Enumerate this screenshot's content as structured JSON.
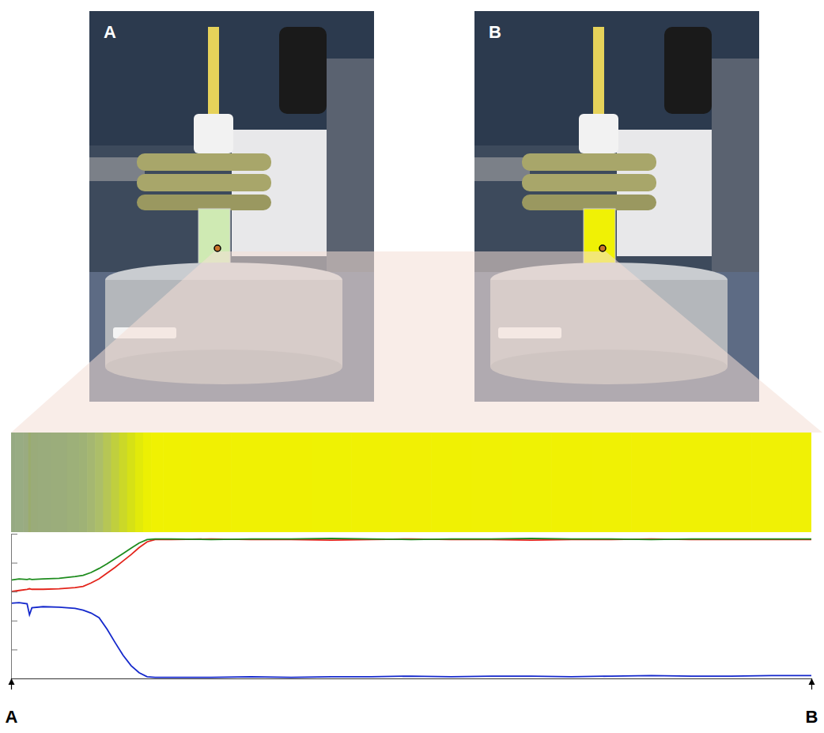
{
  "photos": {
    "labels": [
      "A",
      "B"
    ]
  },
  "chart_data": {
    "type": "line",
    "x": [
      0,
      1,
      2,
      2.3,
      2.6,
      4,
      6,
      8,
      9,
      10,
      11,
      12,
      13,
      14,
      15,
      16,
      17,
      18,
      20,
      25,
      30,
      35,
      40,
      45,
      50,
      55,
      60,
      65,
      70,
      75,
      80,
      85,
      90,
      95,
      100
    ],
    "series": [
      {
        "color": "#e3241b",
        "values": [
          150,
          152,
          154,
          155,
          154,
          154,
          155,
          157,
          159,
          165,
          172,
          182,
          192,
          203,
          214,
          226,
          236,
          240,
          240,
          241,
          240,
          240,
          239,
          240,
          241,
          240,
          240,
          239,
          240,
          240,
          241,
          240,
          240,
          240,
          240
        ]
      },
      {
        "color": "#1e8c1e",
        "values": [
          170,
          172,
          171,
          172,
          171,
          172,
          173,
          176,
          178,
          183,
          190,
          198,
          207,
          216,
          225,
          234,
          240,
          241,
          241,
          240,
          241,
          241,
          242,
          241,
          240,
          241,
          241,
          242,
          241,
          241,
          240,
          241,
          241,
          241,
          241
        ]
      },
      {
        "color": "#1428cc",
        "values": [
          130,
          131,
          129,
          110,
          122,
          124,
          123,
          121,
          118,
          113,
          105,
          85,
          62,
          40,
          22,
          10,
          3,
          2,
          2,
          2,
          3,
          2,
          3,
          3,
          4,
          3,
          4,
          4,
          3,
          4,
          5,
          4,
          4,
          5,
          5
        ]
      }
    ],
    "xlim": [
      0,
      100
    ],
    "xticks": [
      {
        "value": 0,
        "label": "A"
      },
      {
        "value": 100,
        "label": "B"
      }
    ],
    "ylim": [
      0,
      250
    ],
    "yticks": [
      0,
      50,
      100,
      150,
      200,
      250
    ],
    "tick_labels": "x",
    "grid": false
  }
}
